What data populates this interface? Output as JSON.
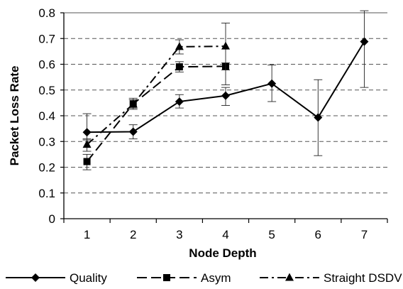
{
  "chart_data": {
    "type": "line",
    "xlabel": "Node Depth",
    "ylabel": "Packet Loss Rate",
    "x_ticks": [
      "1",
      "2",
      "3",
      "4",
      "5",
      "6",
      "7"
    ],
    "y_ticks": [
      "0",
      "0.1",
      "0.2",
      "0.3",
      "0.4",
      "0.5",
      "0.6",
      "0.7",
      "0.8"
    ],
    "xlim": [
      0.5,
      7.5
    ],
    "ylim": [
      0,
      0.8
    ],
    "grid": "horizontal dashed",
    "legend_position": "bottom",
    "series": [
      {
        "name": "Quality",
        "marker": "diamond",
        "dash": "solid",
        "x": [
          1,
          2,
          3,
          4,
          5,
          6,
          7
        ],
        "y": [
          0.336,
          0.338,
          0.455,
          0.478,
          0.525,
          0.393,
          0.688
        ],
        "err_low": [
          0.306,
          0.31,
          0.43,
          0.44,
          0.455,
          0.245,
          0.51
        ],
        "err_high": [
          0.408,
          0.365,
          0.482,
          0.51,
          0.597,
          0.54,
          0.808
        ]
      },
      {
        "name": "Asym",
        "marker": "square",
        "dash": "dash",
        "x": [
          1,
          2,
          3,
          4
        ],
        "y": [
          0.222,
          0.446,
          0.59,
          0.592
        ],
        "err_low": [
          0.19,
          0.43,
          0.57,
          0.578
        ],
        "err_high": [
          0.25,
          0.462,
          0.61,
          0.605
        ]
      },
      {
        "name": "Straight DSDV",
        "marker": "triangle",
        "dash": "dashdot",
        "x": [
          1,
          2,
          3,
          4
        ],
        "y": [
          0.288,
          0.445,
          0.668,
          0.67
        ],
        "err_low": [
          0.262,
          0.425,
          0.64,
          0.52
        ],
        "err_high": [
          0.31,
          0.468,
          0.695,
          0.76
        ]
      }
    ]
  }
}
